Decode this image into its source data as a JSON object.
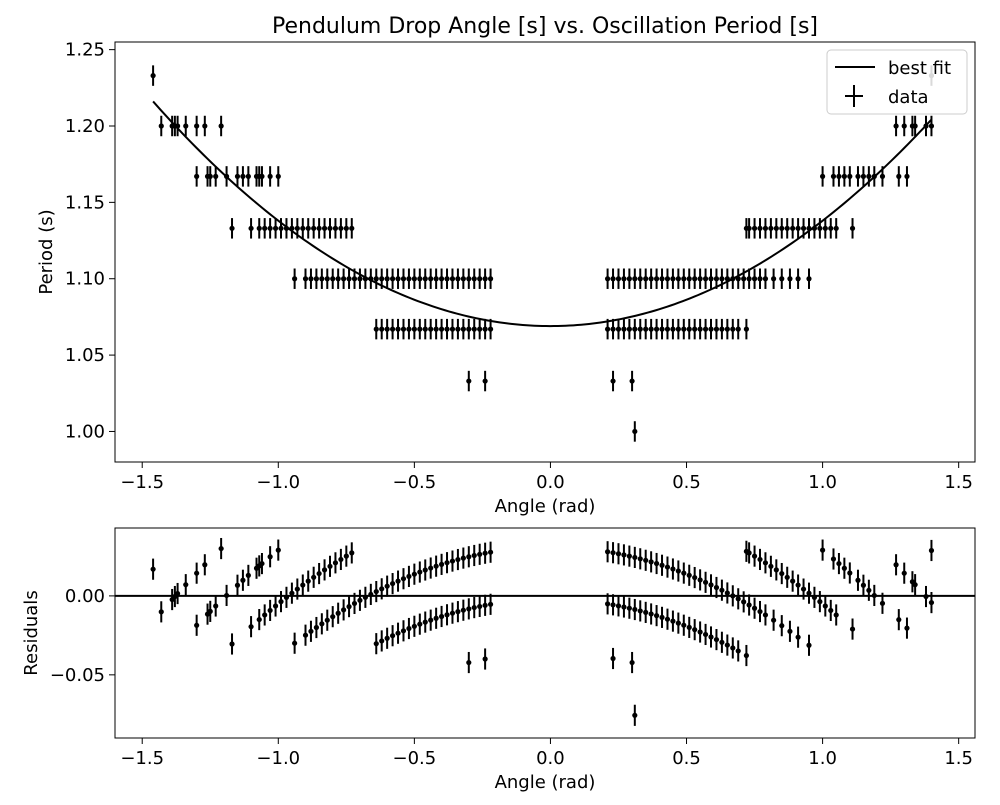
{
  "chart_data": [
    {
      "type": "scatter",
      "title": "Pendulum Drop Angle [s] vs. Oscillation Period [s]",
      "xlabel": "Angle (rad)",
      "ylabel": "Period (s)",
      "xlim": [
        -1.6,
        1.56
      ],
      "ylim": [
        0.98,
        1.255
      ],
      "xticks": [
        -1.5,
        -1.0,
        -0.5,
        0.0,
        0.5,
        1.0,
        1.5
      ],
      "xtick_labels": [
        "−1.5",
        "−1.0",
        "−0.5",
        "0.0",
        "0.5",
        "1.0",
        "1.5"
      ],
      "yticks": [
        1.0,
        1.05,
        1.1,
        1.15,
        1.2,
        1.25
      ],
      "ytick_labels": [
        "1.00",
        "1.05",
        "1.10",
        "1.15",
        "1.20",
        "1.25"
      ],
      "grid": false,
      "legend": {
        "placement": "top-right",
        "entries": [
          "best fit",
          "data"
        ]
      },
      "fit": {
        "name": "best fit",
        "x_range": [
          -1.46,
          1.4
        ],
        "y_at_zero": 1.069,
        "curvature": 0.069
      },
      "data_series": {
        "name": "data",
        "y_error": 0.0067,
        "points": [
          [
            -1.46,
            1.233
          ],
          [
            -1.43,
            1.2
          ],
          [
            -1.39,
            1.2
          ],
          [
            -1.38,
            1.2
          ],
          [
            -1.37,
            1.2
          ],
          [
            -1.34,
            1.2
          ],
          [
            -1.3,
            1.2
          ],
          [
            -1.27,
            1.2
          ],
          [
            -1.21,
            1.2
          ],
          [
            -1.3,
            1.167
          ],
          [
            -1.26,
            1.167
          ],
          [
            -1.25,
            1.167
          ],
          [
            -1.23,
            1.167
          ],
          [
            -1.19,
            1.167
          ],
          [
            -1.15,
            1.167
          ],
          [
            -1.13,
            1.167
          ],
          [
            -1.11,
            1.167
          ],
          [
            -1.08,
            1.167
          ],
          [
            -1.07,
            1.167
          ],
          [
            -1.06,
            1.167
          ],
          [
            -1.03,
            1.167
          ],
          [
            -1.0,
            1.167
          ],
          [
            -1.17,
            1.133
          ],
          [
            -1.1,
            1.133
          ],
          [
            -1.07,
            1.133
          ],
          [
            -1.05,
            1.133
          ],
          [
            -1.03,
            1.133
          ],
          [
            -1.01,
            1.133
          ],
          [
            -0.99,
            1.133
          ],
          [
            -0.97,
            1.133
          ],
          [
            -0.95,
            1.133
          ],
          [
            -0.93,
            1.133
          ],
          [
            -0.91,
            1.133
          ],
          [
            -0.89,
            1.133
          ],
          [
            -0.87,
            1.133
          ],
          [
            -0.85,
            1.133
          ],
          [
            -0.83,
            1.133
          ],
          [
            -0.81,
            1.133
          ],
          [
            -0.79,
            1.133
          ],
          [
            -0.77,
            1.133
          ],
          [
            -0.75,
            1.133
          ],
          [
            -0.73,
            1.133
          ],
          [
            -0.94,
            1.1
          ],
          [
            -0.9,
            1.1
          ],
          [
            -0.88,
            1.1
          ],
          [
            -0.86,
            1.1
          ],
          [
            -0.84,
            1.1
          ],
          [
            -0.82,
            1.1
          ],
          [
            -0.8,
            1.1
          ],
          [
            -0.78,
            1.1
          ],
          [
            -0.76,
            1.1
          ],
          [
            -0.74,
            1.1
          ],
          [
            -0.72,
            1.1
          ],
          [
            -0.7,
            1.1
          ],
          [
            -0.68,
            1.1
          ],
          [
            -0.66,
            1.1
          ],
          [
            -0.64,
            1.1
          ],
          [
            -0.62,
            1.1
          ],
          [
            -0.6,
            1.1
          ],
          [
            -0.58,
            1.1
          ],
          [
            -0.56,
            1.1
          ],
          [
            -0.54,
            1.1
          ],
          [
            -0.52,
            1.1
          ],
          [
            -0.5,
            1.1
          ],
          [
            -0.48,
            1.1
          ],
          [
            -0.46,
            1.1
          ],
          [
            -0.44,
            1.1
          ],
          [
            -0.42,
            1.1
          ],
          [
            -0.4,
            1.1
          ],
          [
            -0.38,
            1.1
          ],
          [
            -0.36,
            1.1
          ],
          [
            -0.34,
            1.1
          ],
          [
            -0.32,
            1.1
          ],
          [
            -0.3,
            1.1
          ],
          [
            -0.28,
            1.1
          ],
          [
            -0.26,
            1.1
          ],
          [
            -0.24,
            1.1
          ],
          [
            -0.22,
            1.1
          ],
          [
            -0.64,
            1.067
          ],
          [
            -0.62,
            1.067
          ],
          [
            -0.6,
            1.067
          ],
          [
            -0.58,
            1.067
          ],
          [
            -0.56,
            1.067
          ],
          [
            -0.54,
            1.067
          ],
          [
            -0.52,
            1.067
          ],
          [
            -0.5,
            1.067
          ],
          [
            -0.48,
            1.067
          ],
          [
            -0.46,
            1.067
          ],
          [
            -0.44,
            1.067
          ],
          [
            -0.42,
            1.067
          ],
          [
            -0.4,
            1.067
          ],
          [
            -0.38,
            1.067
          ],
          [
            -0.36,
            1.067
          ],
          [
            -0.34,
            1.067
          ],
          [
            -0.32,
            1.067
          ],
          [
            -0.3,
            1.067
          ],
          [
            -0.28,
            1.067
          ],
          [
            -0.26,
            1.067
          ],
          [
            -0.24,
            1.067
          ],
          [
            -0.22,
            1.067
          ],
          [
            -0.3,
            1.033
          ],
          [
            -0.24,
            1.033
          ],
          [
            0.21,
            1.1
          ],
          [
            0.23,
            1.1
          ],
          [
            0.25,
            1.1
          ],
          [
            0.27,
            1.1
          ],
          [
            0.29,
            1.1
          ],
          [
            0.31,
            1.1
          ],
          [
            0.33,
            1.1
          ],
          [
            0.35,
            1.1
          ],
          [
            0.37,
            1.1
          ],
          [
            0.39,
            1.1
          ],
          [
            0.41,
            1.1
          ],
          [
            0.43,
            1.1
          ],
          [
            0.45,
            1.1
          ],
          [
            0.47,
            1.1
          ],
          [
            0.49,
            1.1
          ],
          [
            0.51,
            1.1
          ],
          [
            0.53,
            1.1
          ],
          [
            0.55,
            1.1
          ],
          [
            0.57,
            1.1
          ],
          [
            0.59,
            1.1
          ],
          [
            0.61,
            1.1
          ],
          [
            0.63,
            1.1
          ],
          [
            0.65,
            1.1
          ],
          [
            0.67,
            1.1
          ],
          [
            0.69,
            1.1
          ],
          [
            0.71,
            1.1
          ],
          [
            0.73,
            1.1
          ],
          [
            0.75,
            1.1
          ],
          [
            0.77,
            1.1
          ],
          [
            0.79,
            1.1
          ],
          [
            0.82,
            1.1
          ],
          [
            0.85,
            1.1
          ],
          [
            0.88,
            1.1
          ],
          [
            0.91,
            1.1
          ],
          [
            0.95,
            1.1
          ],
          [
            0.21,
            1.067
          ],
          [
            0.23,
            1.067
          ],
          [
            0.25,
            1.067
          ],
          [
            0.27,
            1.067
          ],
          [
            0.29,
            1.067
          ],
          [
            0.31,
            1.067
          ],
          [
            0.33,
            1.067
          ],
          [
            0.35,
            1.067
          ],
          [
            0.37,
            1.067
          ],
          [
            0.39,
            1.067
          ],
          [
            0.41,
            1.067
          ],
          [
            0.43,
            1.067
          ],
          [
            0.45,
            1.067
          ],
          [
            0.47,
            1.067
          ],
          [
            0.49,
            1.067
          ],
          [
            0.51,
            1.067
          ],
          [
            0.53,
            1.067
          ],
          [
            0.55,
            1.067
          ],
          [
            0.57,
            1.067
          ],
          [
            0.59,
            1.067
          ],
          [
            0.61,
            1.067
          ],
          [
            0.63,
            1.067
          ],
          [
            0.65,
            1.067
          ],
          [
            0.67,
            1.067
          ],
          [
            0.69,
            1.067
          ],
          [
            0.72,
            1.067
          ],
          [
            0.23,
            1.033
          ],
          [
            0.3,
            1.033
          ],
          [
            0.31,
            1.0
          ],
          [
            0.72,
            1.133
          ],
          [
            0.73,
            1.133
          ],
          [
            0.75,
            1.133
          ],
          [
            0.77,
            1.133
          ],
          [
            0.79,
            1.133
          ],
          [
            0.81,
            1.133
          ],
          [
            0.83,
            1.133
          ],
          [
            0.85,
            1.133
          ],
          [
            0.87,
            1.133
          ],
          [
            0.89,
            1.133
          ],
          [
            0.91,
            1.133
          ],
          [
            0.93,
            1.133
          ],
          [
            0.95,
            1.133
          ],
          [
            0.97,
            1.133
          ],
          [
            0.99,
            1.133
          ],
          [
            1.01,
            1.133
          ],
          [
            1.03,
            1.133
          ],
          [
            1.05,
            1.133
          ],
          [
            1.11,
            1.133
          ],
          [
            1.0,
            1.167
          ],
          [
            1.04,
            1.167
          ],
          [
            1.06,
            1.167
          ],
          [
            1.08,
            1.167
          ],
          [
            1.1,
            1.167
          ],
          [
            1.13,
            1.167
          ],
          [
            1.15,
            1.167
          ],
          [
            1.17,
            1.167
          ],
          [
            1.19,
            1.167
          ],
          [
            1.22,
            1.167
          ],
          [
            1.28,
            1.167
          ],
          [
            1.31,
            1.167
          ],
          [
            1.27,
            1.2
          ],
          [
            1.3,
            1.2
          ],
          [
            1.33,
            1.2
          ],
          [
            1.34,
            1.2
          ],
          [
            1.38,
            1.2
          ],
          [
            1.4,
            1.2
          ],
          [
            1.4,
            1.233
          ]
        ]
      }
    },
    {
      "type": "scatter",
      "title": "",
      "xlabel": "Angle (rad)",
      "ylabel": "Residuals",
      "xlim": [
        -1.6,
        1.56
      ],
      "ylim": [
        -0.09,
        0.043
      ],
      "xticks": [
        -1.5,
        -1.0,
        -0.5,
        0.0,
        0.5,
        1.0,
        1.5
      ],
      "xtick_labels": [
        "−1.5",
        "−1.0",
        "−0.5",
        "0.0",
        "0.5",
        "1.0",
        "1.5"
      ],
      "yticks": [
        -0.05,
        0.0
      ],
      "ytick_labels": [
        "−0.05",
        "0.00"
      ],
      "grid": false,
      "zero_line": 0.0,
      "y_error": 0.0067,
      "residuals_of": "data"
    }
  ]
}
